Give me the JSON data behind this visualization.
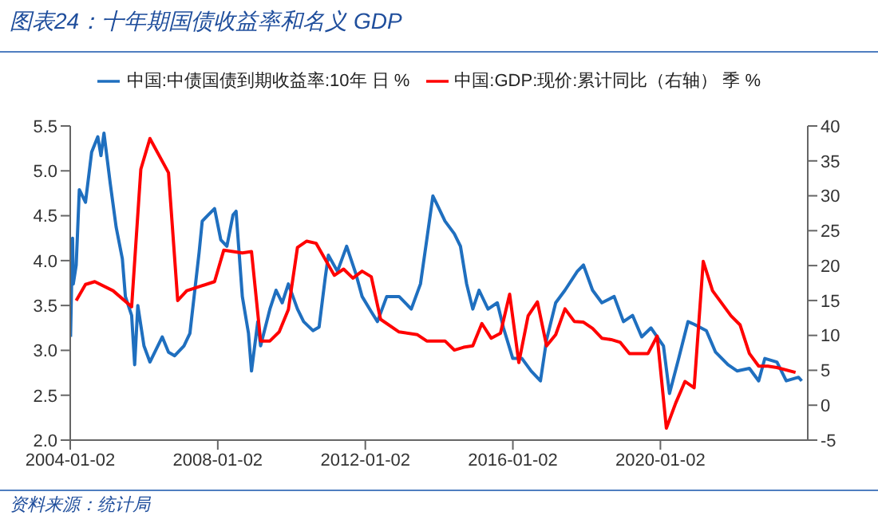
{
  "chart_data": {
    "type": "line",
    "title": "图表24：十年期国债收益率和名义 GDP",
    "annotations": [
      "资料来源：统计局"
    ],
    "xlim": [
      "2004-01-02",
      "2023-12-31"
    ],
    "xticks": [
      "2004-01-02",
      "2008-01-02",
      "2012-01-02",
      "2016-01-02",
      "2020-01-02"
    ],
    "ylim": [
      2,
      5.5
    ],
    "yticks": [
      {
        "value": 2,
        "label": "2.0"
      },
      {
        "value": 2.5,
        "label": "2.5"
      },
      {
        "value": 3,
        "label": "3.0"
      },
      {
        "value": 3.5,
        "label": "3.5"
      },
      {
        "value": 4,
        "label": "4.0"
      },
      {
        "value": 4.5,
        "label": "4.5"
      },
      {
        "value": 5,
        "label": "5.0"
      },
      {
        "value": 5.5,
        "label": "5.5"
      }
    ],
    "y2lim": [
      -5,
      40
    ],
    "y2ticks": [
      -5,
      0,
      5,
      10,
      15,
      20,
      25,
      30,
      35,
      40
    ],
    "legend": "top",
    "grid": false,
    "marker": "none",
    "line_style": "solid",
    "series": [
      {
        "name": "中国:中债国债到期收益率:10年 日 %",
        "color": "#1f6fbf",
        "x": [
          "2004-01-05",
          "2004-01-25",
          "2004-02",
          "2004-03",
          "2004-04",
          "2004-06",
          "2004-08",
          "2004-10",
          "2004-11",
          "2004-12",
          "2005-02",
          "2005-04",
          "2005-06",
          "2005-07",
          "2005-09",
          "2005-10",
          "2005-11",
          "2006-01",
          "2006-03",
          "2006-05",
          "2006-07",
          "2006-09",
          "2006-11",
          "2007-02",
          "2007-04",
          "2007-07",
          "2007-08",
          "2007-10",
          "2007-12",
          "2008-02",
          "2008-04",
          "2008-06",
          "2008-07",
          "2008-09",
          "2008-11",
          "2008-12",
          "2009-02",
          "2009-03",
          "2009-06",
          "2009-08",
          "2009-10",
          "2009-12",
          "2010-03",
          "2010-05",
          "2010-08",
          "2010-10",
          "2010-12",
          "2011-01",
          "2011-04",
          "2011-07",
          "2011-10",
          "2011-12",
          "2012-03",
          "2012-05",
          "2012-08",
          "2012-12",
          "2013-04",
          "2013-07",
          "2013-09",
          "2013-11",
          "2014-01",
          "2014-03",
          "2014-06",
          "2014-08",
          "2014-10",
          "2014-12",
          "2015-02",
          "2015-05",
          "2015-08",
          "2015-10",
          "2016-01",
          "2016-04",
          "2016-07",
          "2016-10",
          "2016-12",
          "2017-03",
          "2017-06",
          "2017-10",
          "2017-12",
          "2018-03",
          "2018-06",
          "2018-10",
          "2019-01",
          "2019-04",
          "2019-07",
          "2019-10",
          "2020-02",
          "2020-04",
          "2020-07",
          "2020-10",
          "2020-12",
          "2021-04",
          "2021-07",
          "2021-11",
          "2022-02",
          "2022-06",
          "2022-09",
          "2022-11",
          "2023-03",
          "2023-06",
          "2023-10",
          "2023-11"
        ],
        "values": [
          3.15,
          4.25,
          3.74,
          3.95,
          4.79,
          4.65,
          5.21,
          5.38,
          5.17,
          5.42,
          4.86,
          4.37,
          4.02,
          3.6,
          3.39,
          2.84,
          3.5,
          3.05,
          2.87,
          3.01,
          3.15,
          2.98,
          2.94,
          3.05,
          3.19,
          4.09,
          4.44,
          4.51,
          4.58,
          4.23,
          4.16,
          4.51,
          4.55,
          3.6,
          3.19,
          2.77,
          3.32,
          3.05,
          3.46,
          3.67,
          3.53,
          3.74,
          3.46,
          3.32,
          3.22,
          3.26,
          3.81,
          4.06,
          3.88,
          4.16,
          3.85,
          3.6,
          3.43,
          3.32,
          3.6,
          3.6,
          3.46,
          3.74,
          4.23,
          4.72,
          4.58,
          4.44,
          4.3,
          4.16,
          3.74,
          3.46,
          3.67,
          3.46,
          3.53,
          3.25,
          2.91,
          2.91,
          2.77,
          2.66,
          3.12,
          3.53,
          3.67,
          3.88,
          3.95,
          3.67,
          3.53,
          3.6,
          3.32,
          3.39,
          3.15,
          3.25,
          3.05,
          2.52,
          2.91,
          3.32,
          3.29,
          3.22,
          2.98,
          2.84,
          2.77,
          2.8,
          2.66,
          2.91,
          2.87,
          2.66,
          2.7,
          2.66
        ]
      },
      {
        "name": "中国:GDP:现价:累计同比（右轴） 季 %",
        "color": "#ff0000",
        "axis": "y2",
        "x": [
          "2004-03",
          "2004-06",
          "2004-09",
          "2005-03",
          "2005-09",
          "2005-12",
          "2006-03",
          "2006-09",
          "2006-12",
          "2007-03",
          "2007-12",
          "2008-03",
          "2008-09",
          "2008-12",
          "2009-03",
          "2009-06",
          "2009-09",
          "2009-12",
          "2010-03",
          "2010-06",
          "2010-09",
          "2011-03",
          "2011-06",
          "2011-09",
          "2011-12",
          "2012-03",
          "2012-06",
          "2012-12",
          "2013-06",
          "2013-09",
          "2014-03",
          "2014-06",
          "2014-09",
          "2014-12",
          "2015-03",
          "2015-06",
          "2015-09",
          "2015-12",
          "2016-03",
          "2016-06",
          "2016-09",
          "2016-12",
          "2017-03",
          "2017-06",
          "2017-09",
          "2017-12",
          "2018-03",
          "2018-06",
          "2018-09",
          "2018-12",
          "2019-03",
          "2019-09",
          "2019-12",
          "2020-03",
          "2020-06",
          "2020-09",
          "2020-12",
          "2021-03",
          "2021-06",
          "2021-12",
          "2022-03",
          "2022-06",
          "2022-09",
          "2022-12",
          "2023-03",
          "2023-09"
        ],
        "values": [
          15.0,
          17.3,
          17.7,
          16.4,
          14.1,
          33.8,
          38.2,
          33.3,
          15.0,
          16.4,
          17.7,
          22.2,
          21.8,
          22.0,
          9.2,
          9.2,
          10.5,
          13.7,
          22.6,
          23.5,
          23.2,
          18.6,
          19.5,
          18.2,
          19.2,
          18.4,
          12.3,
          10.5,
          10.1,
          9.2,
          9.2,
          7.9,
          8.3,
          8.5,
          11.7,
          9.6,
          10.3,
          15.9,
          6.1,
          12.8,
          14.8,
          8.5,
          10.1,
          13.8,
          12.0,
          11.9,
          11.0,
          9.6,
          9.4,
          9.0,
          7.4,
          7.4,
          9.9,
          -3.3,
          0.3,
          3.4,
          2.5,
          20.6,
          16.4,
          12.8,
          11.5,
          7.4,
          5.6,
          5.6,
          5.4,
          4.7
        ]
      }
    ]
  }
}
